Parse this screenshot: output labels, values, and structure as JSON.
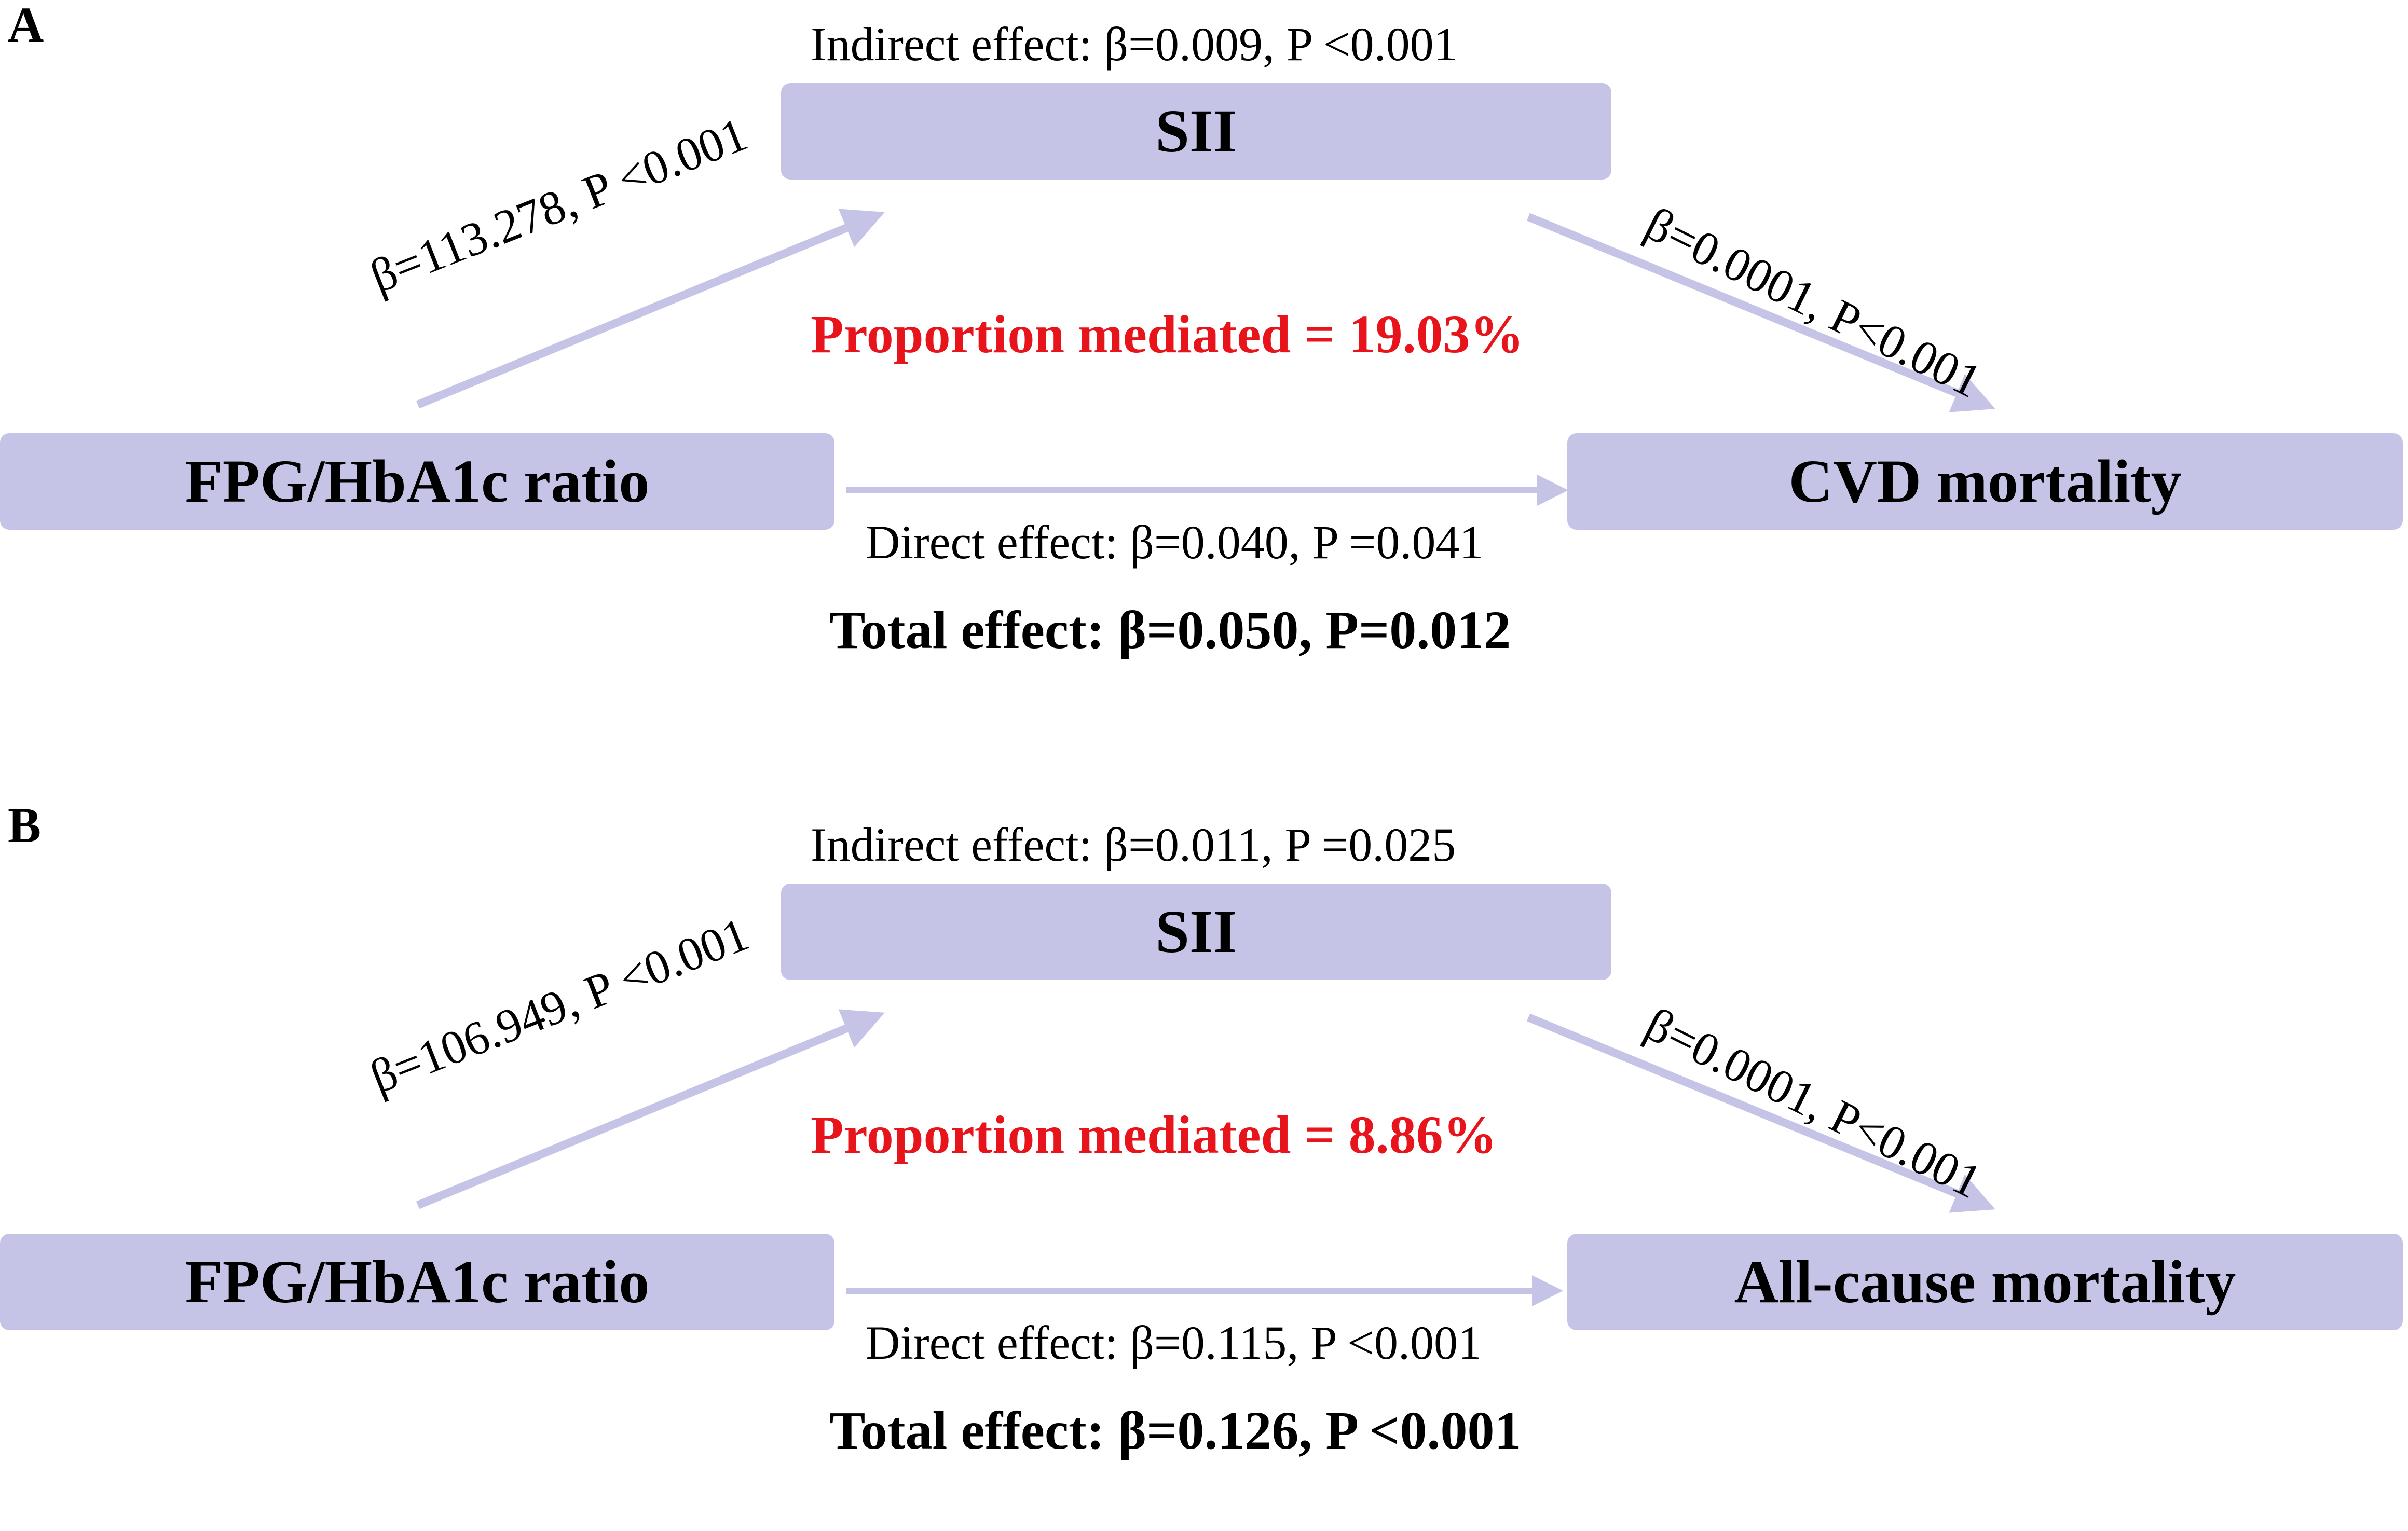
{
  "colors": {
    "box_fill": "#c5c4e6",
    "arrow": "#c5c4e6",
    "proportion_text": "#e8141b",
    "text": "#000000"
  },
  "panels": [
    {
      "letter": "A",
      "mediator": "SII",
      "exposure": "FPG/HbA1c ratio",
      "outcome": "CVD mortality",
      "indirect_effect": "Indirect effect: β=0.009, P <0.001",
      "path_a": "β=113.278, P <0.001",
      "path_b": "β=0.0001, P<0.001",
      "proportion_mediated": "Proportion mediated = 19.03%",
      "direct_effect": "Direct effect: β=0.040, P =0.041",
      "total_effect": "Total effect: β=0.050, P=0.012"
    },
    {
      "letter": "B",
      "mediator": "SII",
      "exposure": "FPG/HbA1c ratio",
      "outcome": "All-cause mortality",
      "indirect_effect": "Indirect effect: β=0.011, P =0.025",
      "path_a": "β=106.949, P <0.001",
      "path_b": "β=0.0001, P<0.001",
      "proportion_mediated": "Proportion mediated = 8.86%",
      "direct_effect": "Direct effect: β=0.115, P <0.001",
      "total_effect": "Total effect: β=0.126, P <0.001"
    }
  ]
}
